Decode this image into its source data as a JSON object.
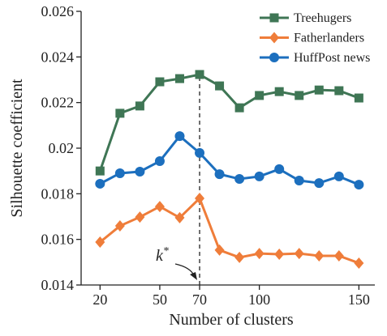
{
  "chart_data": {
    "type": "line",
    "xlabel": "Number of clusters",
    "ylabel": "Silhouette coefficient",
    "x": [
      20,
      30,
      40,
      50,
      60,
      70,
      80,
      90,
      100,
      110,
      120,
      130,
      140,
      150
    ],
    "series": [
      {
        "name": "Treehugers",
        "color": "#3f7655",
        "marker": "square",
        "values": [
          0.019,
          0.02153,
          0.02185,
          0.02291,
          0.02305,
          0.02323,
          0.02273,
          0.02177,
          0.02231,
          0.02248,
          0.02231,
          0.02255,
          0.02252,
          0.0222
        ]
      },
      {
        "name": "Fatherlanders",
        "color": "#ef7d3a",
        "marker": "diamond",
        "values": [
          0.01588,
          0.01659,
          0.01698,
          0.01744,
          0.01695,
          0.0178,
          0.01553,
          0.01521,
          0.01538,
          0.01535,
          0.01538,
          0.01528,
          0.01528,
          0.01496
        ]
      },
      {
        "name": "HuffPost news",
        "color": "#1c6fbe",
        "marker": "circle",
        "values": [
          0.01844,
          0.0189,
          0.01897,
          0.01943,
          0.02053,
          0.01979,
          0.01886,
          0.01865,
          0.01876,
          0.01908,
          0.01858,
          0.01847,
          0.01876,
          0.0184
        ]
      }
    ],
    "xlim": [
      10.5,
      158
    ],
    "xticks": [
      20,
      50,
      70,
      100,
      150
    ],
    "ylim": [
      0.014,
      0.026
    ],
    "yticks": [
      0.014,
      0.016,
      0.018,
      0.02,
      0.022,
      0.024,
      0.026
    ],
    "annotation": {
      "x": 70,
      "label": "k",
      "label_sup": "*"
    },
    "legend": "upper right"
  }
}
